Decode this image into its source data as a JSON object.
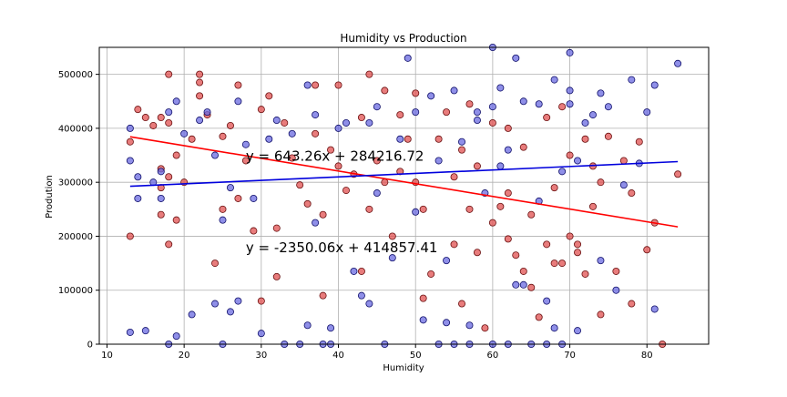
{
  "chart_data": {
    "type": "scatter",
    "title": "Humidity vs Production",
    "xlabel": "Humidity",
    "ylabel": "Prodution",
    "xlim": [
      9,
      88
    ],
    "ylim": [
      0,
      550000
    ],
    "x_ticks": [
      10,
      20,
      30,
      40,
      50,
      60,
      70,
      80
    ],
    "y_ticks": [
      0,
      100000,
      200000,
      300000,
      400000,
      500000
    ],
    "y_tick_labels": [
      "0",
      "100000",
      "200000",
      "300000",
      "400000",
      "500000"
    ],
    "grid": true,
    "series": [
      {
        "color": "#e05050",
        "edge": "#6a1010",
        "points": [
          [
            13,
            375000
          ],
          [
            13,
            200000
          ],
          [
            14,
            435000
          ],
          [
            15,
            420000
          ],
          [
            16,
            405000
          ],
          [
            17,
            420000
          ],
          [
            17,
            325000
          ],
          [
            17,
            290000
          ],
          [
            17,
            240000
          ],
          [
            18,
            500000
          ],
          [
            18,
            410000
          ],
          [
            18,
            310000
          ],
          [
            18,
            185000
          ],
          [
            19,
            230000
          ],
          [
            19,
            350000
          ],
          [
            20,
            300000
          ],
          [
            21,
            380000
          ],
          [
            22,
            500000
          ],
          [
            22,
            485000
          ],
          [
            22,
            460000
          ],
          [
            23,
            425000
          ],
          [
            24,
            150000
          ],
          [
            25,
            385000
          ],
          [
            25,
            250000
          ],
          [
            26,
            405000
          ],
          [
            27,
            480000
          ],
          [
            27,
            270000
          ],
          [
            28,
            340000
          ],
          [
            29,
            210000
          ],
          [
            30,
            435000
          ],
          [
            30,
            80000
          ],
          [
            31,
            460000
          ],
          [
            32,
            215000
          ],
          [
            32,
            125000
          ],
          [
            33,
            410000
          ],
          [
            34,
            345000
          ],
          [
            35,
            295000
          ],
          [
            36,
            260000
          ],
          [
            37,
            480000
          ],
          [
            37,
            390000
          ],
          [
            38,
            90000
          ],
          [
            38,
            240000
          ],
          [
            39,
            360000
          ],
          [
            40,
            480000
          ],
          [
            40,
            330000
          ],
          [
            41,
            285000
          ],
          [
            42,
            315000
          ],
          [
            43,
            420000
          ],
          [
            43,
            135000
          ],
          [
            44,
            250000
          ],
          [
            44,
            500000
          ],
          [
            45,
            340000
          ],
          [
            46,
            470000
          ],
          [
            46,
            300000
          ],
          [
            47,
            200000
          ],
          [
            48,
            425000
          ],
          [
            48,
            320000
          ],
          [
            49,
            380000
          ],
          [
            50,
            300000
          ],
          [
            50,
            465000
          ],
          [
            51,
            85000
          ],
          [
            51,
            250000
          ],
          [
            52,
            130000
          ],
          [
            53,
            380000
          ],
          [
            54,
            430000
          ],
          [
            55,
            310000
          ],
          [
            55,
            185000
          ],
          [
            56,
            75000
          ],
          [
            56,
            360000
          ],
          [
            57,
            445000
          ],
          [
            57,
            250000
          ],
          [
            58,
            330000
          ],
          [
            58,
            170000
          ],
          [
            59,
            30000
          ],
          [
            60,
            410000
          ],
          [
            60,
            225000
          ],
          [
            61,
            255000
          ],
          [
            62,
            400000
          ],
          [
            62,
            280000
          ],
          [
            62,
            195000
          ],
          [
            63,
            165000
          ],
          [
            64,
            135000
          ],
          [
            64,
            365000
          ],
          [
            65,
            240000
          ],
          [
            65,
            105000
          ],
          [
            66,
            50000
          ],
          [
            67,
            420000
          ],
          [
            67,
            185000
          ],
          [
            68,
            290000
          ],
          [
            68,
            150000
          ],
          [
            69,
            150000
          ],
          [
            69,
            440000
          ],
          [
            70,
            350000
          ],
          [
            70,
            200000
          ],
          [
            71,
            185000
          ],
          [
            71,
            170000
          ],
          [
            72,
            380000
          ],
          [
            72,
            130000
          ],
          [
            73,
            330000
          ],
          [
            73,
            255000
          ],
          [
            74,
            300000
          ],
          [
            74,
            55000
          ],
          [
            75,
            385000
          ],
          [
            76,
            135000
          ],
          [
            77,
            340000
          ],
          [
            78,
            280000
          ],
          [
            78,
            75000
          ],
          [
            79,
            375000
          ],
          [
            80,
            175000
          ],
          [
            81,
            225000
          ],
          [
            82,
            0
          ],
          [
            84,
            315000
          ]
        ]
      },
      {
        "color": "#6a6ae0",
        "edge": "#10106a",
        "points": [
          [
            13,
            22000
          ],
          [
            13,
            400000
          ],
          [
            13,
            340000
          ],
          [
            14,
            310000
          ],
          [
            14,
            270000
          ],
          [
            15,
            25000
          ],
          [
            16,
            300000
          ],
          [
            17,
            270000
          ],
          [
            17,
            320000
          ],
          [
            18,
            0
          ],
          [
            18,
            430000
          ],
          [
            19,
            15000
          ],
          [
            19,
            450000
          ],
          [
            20,
            390000
          ],
          [
            21,
            55000
          ],
          [
            22,
            415000
          ],
          [
            23,
            430000
          ],
          [
            24,
            350000
          ],
          [
            24,
            75000
          ],
          [
            25,
            230000
          ],
          [
            25,
            0
          ],
          [
            26,
            290000
          ],
          [
            26,
            60000
          ],
          [
            27,
            450000
          ],
          [
            27,
            80000
          ],
          [
            28,
            370000
          ],
          [
            29,
            270000
          ],
          [
            30,
            20000
          ],
          [
            31,
            380000
          ],
          [
            32,
            415000
          ],
          [
            33,
            0
          ],
          [
            34,
            390000
          ],
          [
            35,
            0
          ],
          [
            36,
            480000
          ],
          [
            36,
            35000
          ],
          [
            37,
            225000
          ],
          [
            37,
            425000
          ],
          [
            38,
            0
          ],
          [
            39,
            30000
          ],
          [
            39,
            0
          ],
          [
            40,
            400000
          ],
          [
            41,
            410000
          ],
          [
            42,
            135000
          ],
          [
            43,
            90000
          ],
          [
            44,
            75000
          ],
          [
            44,
            410000
          ],
          [
            45,
            440000
          ],
          [
            45,
            280000
          ],
          [
            46,
            0
          ],
          [
            47,
            160000
          ],
          [
            48,
            380000
          ],
          [
            49,
            530000
          ],
          [
            50,
            430000
          ],
          [
            50,
            245000
          ],
          [
            51,
            45000
          ],
          [
            52,
            460000
          ],
          [
            53,
            340000
          ],
          [
            53,
            0
          ],
          [
            54,
            40000
          ],
          [
            54,
            155000
          ],
          [
            55,
            470000
          ],
          [
            55,
            0
          ],
          [
            56,
            375000
          ],
          [
            57,
            35000
          ],
          [
            57,
            0
          ],
          [
            58,
            415000
          ],
          [
            58,
            430000
          ],
          [
            59,
            280000
          ],
          [
            60,
            550000
          ],
          [
            60,
            440000
          ],
          [
            60,
            0
          ],
          [
            61,
            475000
          ],
          [
            61,
            330000
          ],
          [
            62,
            360000
          ],
          [
            62,
            0
          ],
          [
            63,
            530000
          ],
          [
            63,
            110000
          ],
          [
            64,
            450000
          ],
          [
            64,
            110000
          ],
          [
            65,
            0
          ],
          [
            66,
            445000
          ],
          [
            66,
            265000
          ],
          [
            67,
            80000
          ],
          [
            67,
            0
          ],
          [
            68,
            30000
          ],
          [
            68,
            490000
          ],
          [
            69,
            0
          ],
          [
            69,
            320000
          ],
          [
            70,
            540000
          ],
          [
            70,
            470000
          ],
          [
            70,
            445000
          ],
          [
            71,
            25000
          ],
          [
            71,
            340000
          ],
          [
            72,
            410000
          ],
          [
            73,
            425000
          ],
          [
            74,
            465000
          ],
          [
            74,
            155000
          ],
          [
            75,
            440000
          ],
          [
            76,
            100000
          ],
          [
            77,
            295000
          ],
          [
            78,
            490000
          ],
          [
            79,
            335000
          ],
          [
            80,
            430000
          ],
          [
            81,
            65000
          ],
          [
            81,
            480000
          ],
          [
            84,
            520000
          ]
        ]
      }
    ],
    "trendlines": [
      {
        "color": "#ff0000",
        "slope": -2350.06,
        "intercept": 414857.41,
        "x_range": [
          13,
          84
        ]
      },
      {
        "color": "#0000dd",
        "slope": 643.26,
        "intercept": 284216.72,
        "x_range": [
          13,
          84
        ]
      }
    ],
    "annotations": [
      {
        "text": "y = 643.26x + 284216.72",
        "x": 28,
        "y": 340000
      },
      {
        "text": "y = -2350.06x + 414857.41",
        "x": 28,
        "y": 170000
      }
    ]
  }
}
